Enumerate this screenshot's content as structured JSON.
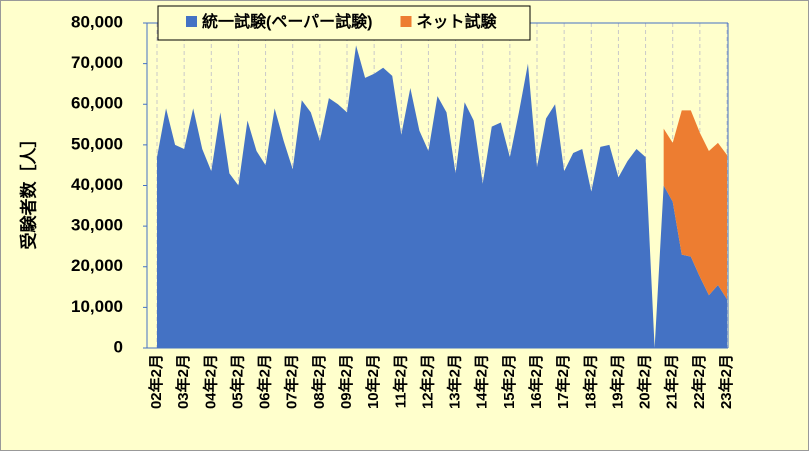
{
  "chart_data": {
    "type": "stacked_area",
    "y_label": "受験者数［人］",
    "categories": [
      "02年2月",
      null,
      null,
      "03年2月",
      null,
      null,
      "04年2月",
      null,
      null,
      "05年2月",
      null,
      null,
      "06年2月",
      null,
      null,
      "07年2月",
      null,
      null,
      "08年2月",
      null,
      null,
      "09年2月",
      null,
      null,
      "10年2月",
      null,
      null,
      "11年2月",
      null,
      null,
      "12年2月",
      null,
      null,
      "13年2月",
      null,
      null,
      "14年2月",
      null,
      null,
      "15年2月",
      null,
      null,
      "16年2月",
      null,
      null,
      "17年2月",
      null,
      null,
      "18年2月",
      null,
      null,
      "19年2月",
      null,
      null,
      "20年2月",
      null,
      null,
      "21年2月",
      null,
      null,
      "22年2月",
      null,
      null,
      "23年2月"
    ],
    "series": [
      {
        "name": "統一試験(ペーパー試験)",
        "color": "#4472c4",
        "values": [
          47000,
          59000,
          50000,
          49000,
          59000,
          49000,
          43500,
          58000,
          43000,
          40000,
          56000,
          48500,
          45000,
          59000,
          51000,
          44000,
          61000,
          58000,
          51000,
          61500,
          60000,
          58000,
          74500,
          66500,
          67500,
          69000,
          67000,
          52500,
          64000,
          53500,
          48500,
          62000,
          58000,
          43000,
          60500,
          56000,
          40500,
          54500,
          55500,
          47000,
          58000,
          70000,
          44500,
          56500,
          60000,
          43500,
          48000,
          49000,
          38500,
          49500,
          50000,
          42000,
          46000,
          49000,
          47000,
          0,
          40000,
          36000,
          23000,
          22500,
          17500,
          13000,
          15500,
          12000
        ]
      },
      {
        "name": "ネット試験",
        "color": "#ed7d31",
        "values": [
          null,
          null,
          null,
          null,
          null,
          null,
          null,
          null,
          null,
          null,
          null,
          null,
          null,
          null,
          null,
          null,
          null,
          null,
          null,
          null,
          null,
          null,
          null,
          null,
          null,
          null,
          null,
          null,
          null,
          null,
          null,
          null,
          null,
          null,
          null,
          null,
          null,
          null,
          null,
          null,
          null,
          null,
          null,
          null,
          null,
          null,
          null,
          null,
          null,
          null,
          null,
          null,
          null,
          null,
          null,
          null,
          14000,
          14500,
          35500,
          36000,
          35500,
          35500,
          35000,
          35500
        ]
      }
    ],
    "ylim": [
      0,
      80000
    ],
    "yticks": [
      0,
      {
        "value": 10000,
        "label": "10,000"
      },
      {
        "value": 20000,
        "label": "20,000"
      },
      {
        "value": 30000,
        "label": "30,000"
      },
      {
        "value": 40000,
        "label": "40,000"
      },
      {
        "value": 50000,
        "label": "50,000"
      },
      {
        "value": 60000,
        "label": "60,000"
      },
      {
        "value": 70000,
        "label": "70,000"
      },
      {
        "value": 80000,
        "label": "80,000"
      }
    ],
    "background": "#ffffcc"
  }
}
